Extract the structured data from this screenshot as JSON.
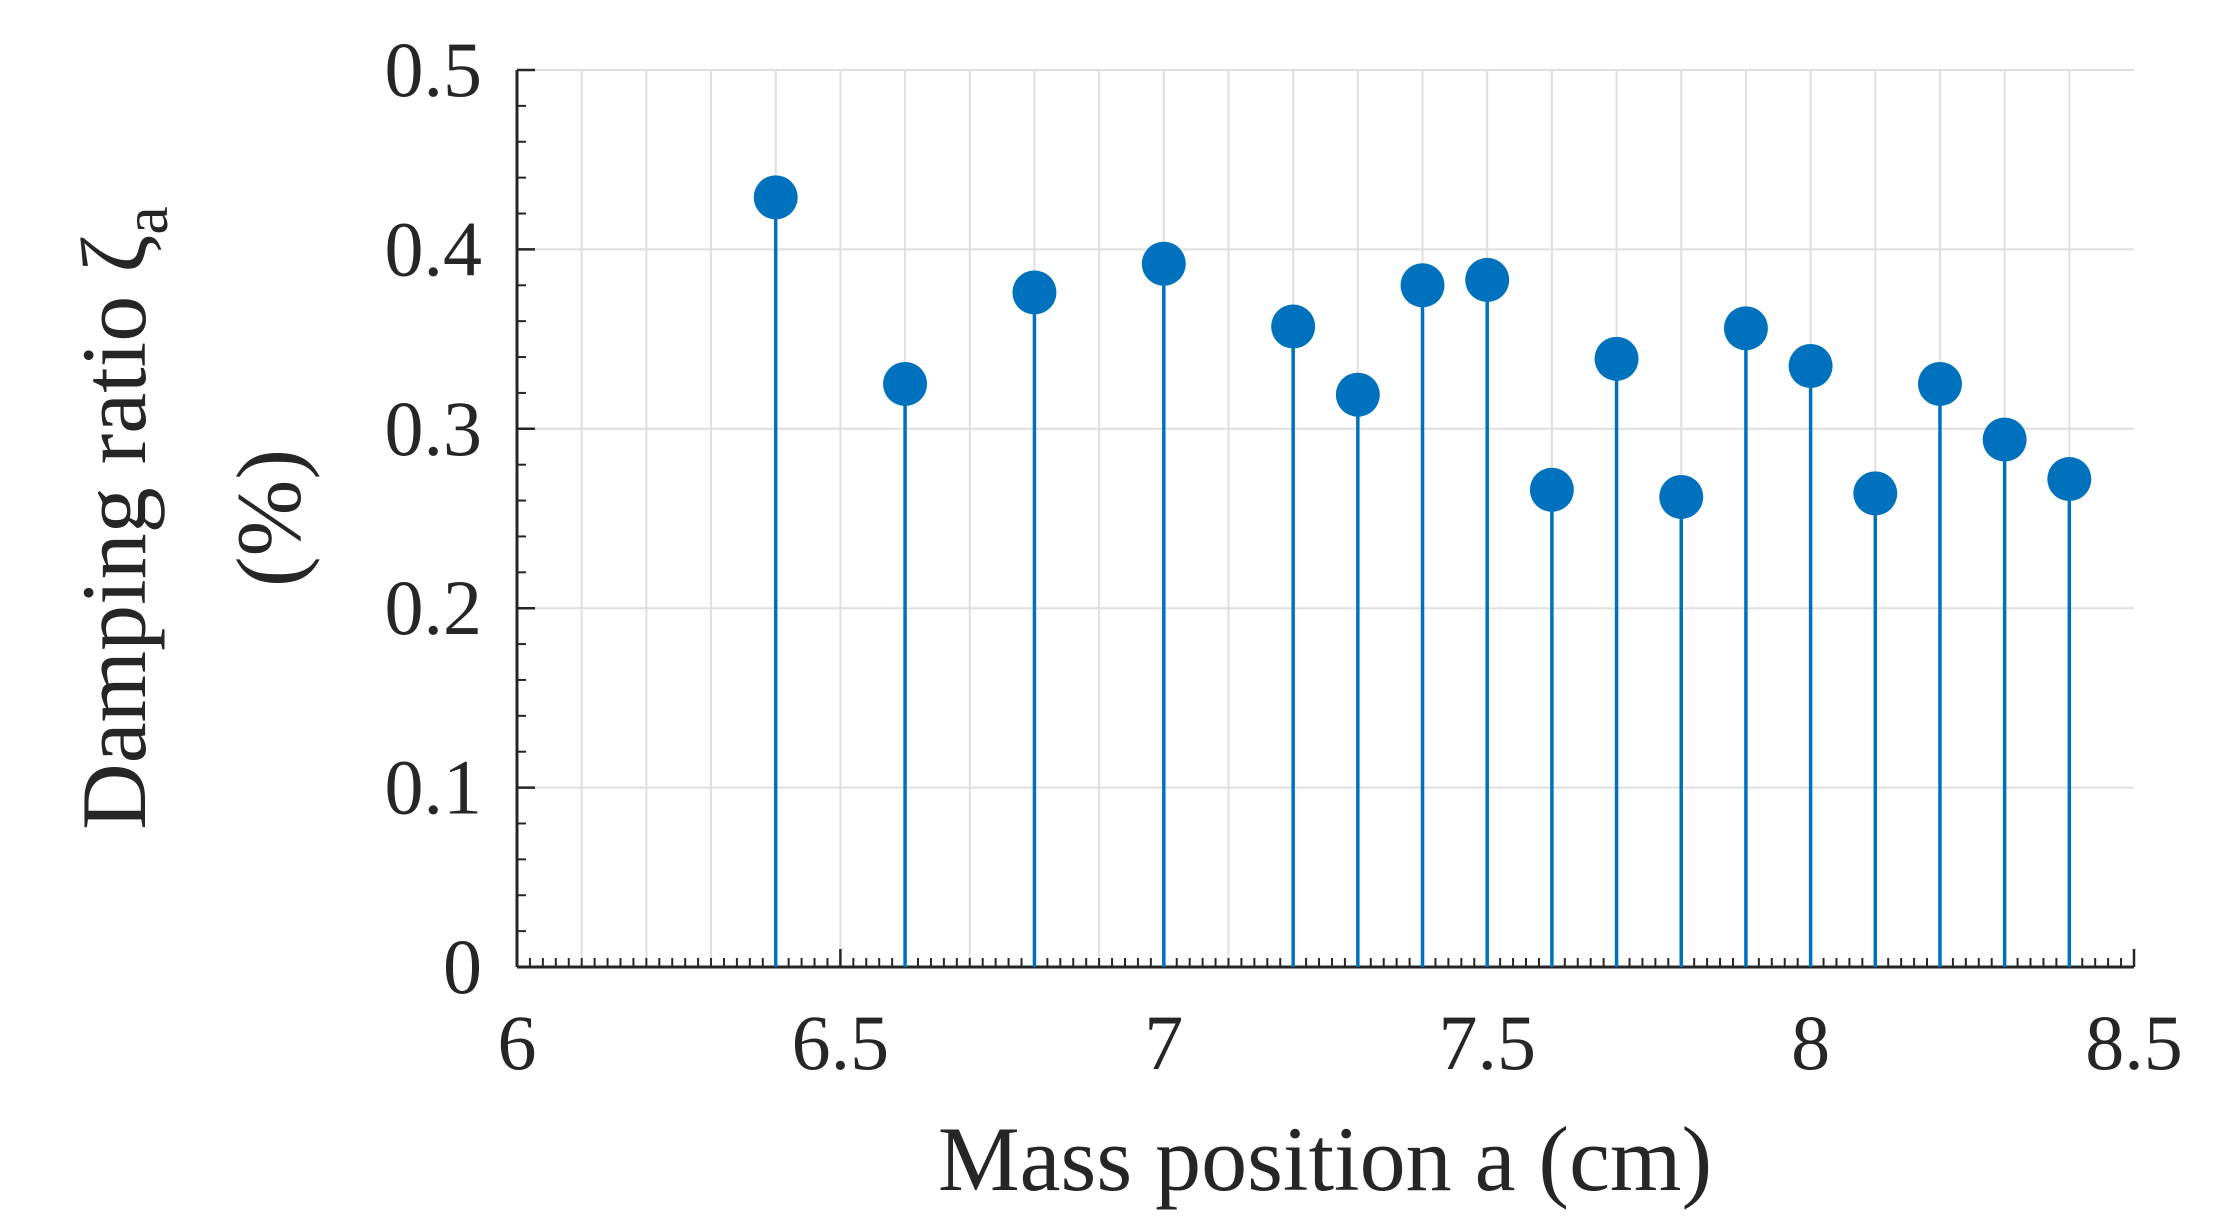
{
  "chart_data": {
    "type": "stem",
    "title": "",
    "xlabel": "Mass position a (cm)",
    "ylabel": {
      "main": "Damping ratio ζ",
      "subscript": "a",
      "unit": "(%)"
    },
    "xlim": [
      6,
      8.5
    ],
    "ylim": [
      0,
      0.5
    ],
    "xticks": [
      6,
      6.5,
      7,
      7.5,
      8,
      8.5
    ],
    "xtick_labels": [
      "6",
      "6.5",
      "7",
      "7.5",
      "8",
      "8.5"
    ],
    "yticks": [
      0,
      0.1,
      0.2,
      0.3,
      0.4,
      0.5
    ],
    "ytick_labels": [
      "0",
      "0.1",
      "0.2",
      "0.3",
      "0.4",
      "0.5"
    ],
    "grid": true,
    "series": [
      {
        "name": "Damping ratio",
        "color": "#0072BD",
        "x": [
          6.4,
          6.6,
          6.8,
          7.0,
          7.2,
          7.3,
          7.4,
          7.5,
          7.6,
          7.7,
          7.8,
          7.9,
          8.0,
          8.1,
          8.2,
          8.3,
          8.4
        ],
        "y": [
          0.429,
          0.325,
          0.376,
          0.392,
          0.357,
          0.319,
          0.38,
          0.383,
          0.266,
          0.339,
          0.262,
          0.356,
          0.335,
          0.264,
          0.325,
          0.294,
          0.272
        ]
      }
    ],
    "colors": {
      "axis": "#262626",
      "grid": "#dfdfdf",
      "background": "#ffffff"
    }
  }
}
